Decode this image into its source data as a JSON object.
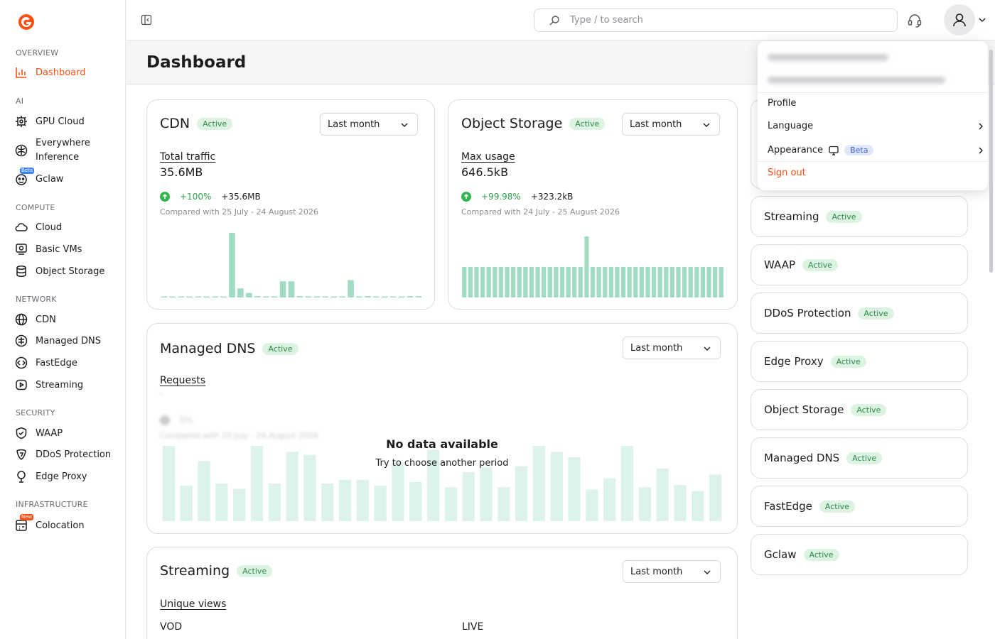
{
  "sidebar": {
    "sections": [
      {
        "label": "OVERVIEW",
        "items": [
          {
            "label": "Dashboard",
            "icon": "bar-chart-icon",
            "active": true
          }
        ]
      },
      {
        "label": "AI",
        "items": [
          {
            "label": "GPU Cloud",
            "icon": "gpu-icon"
          },
          {
            "label": "Everywhere Inference",
            "icon": "globe-brain-icon"
          },
          {
            "label": "Gclaw",
            "icon": "robot-icon",
            "badge": "Beta"
          }
        ]
      },
      {
        "label": "COMPUTE",
        "items": [
          {
            "label": "Cloud",
            "icon": "cloud-icon"
          },
          {
            "label": "Basic VMs",
            "icon": "vm-icon"
          },
          {
            "label": "Object Storage",
            "icon": "database-icon"
          }
        ]
      },
      {
        "label": "NETWORK",
        "items": [
          {
            "label": "CDN",
            "icon": "globe-icon"
          },
          {
            "label": "Managed DNS",
            "icon": "dns-icon"
          },
          {
            "label": "FastEdge",
            "icon": "code-icon"
          },
          {
            "label": "Streaming",
            "icon": "play-icon"
          }
        ]
      },
      {
        "label": "SECURITY",
        "items": [
          {
            "label": "WAAP",
            "icon": "shield-check-icon"
          },
          {
            "label": "DDoS Protection",
            "icon": "shield-icon"
          },
          {
            "label": "Edge Proxy",
            "icon": "location-icon"
          }
        ]
      },
      {
        "label": "INFRASTRUCTURE",
        "items": [
          {
            "label": "Colocation",
            "icon": "server-icon",
            "badge": "New"
          }
        ]
      }
    ]
  },
  "topbar": {
    "search_placeholder": "Type / to search"
  },
  "header": {
    "title": "Dashboard"
  },
  "cards": {
    "cdn": {
      "title": "CDN",
      "status": "Active",
      "period": "Last month",
      "metric_label": "Total traffic",
      "metric_value": "35.6MB",
      "delta_pct": "+100%",
      "delta_abs": "+35.6MB",
      "compare": "Compared with 25 July - 24 August 2026",
      "bars": [
        0,
        0,
        0,
        0,
        0,
        0,
        0,
        0,
        1,
        0.14,
        0.07,
        0.02,
        0,
        0,
        0.25,
        0.25,
        0.02,
        0,
        0,
        0,
        0,
        0,
        0.27,
        0,
        0.02,
        0,
        0,
        0,
        0,
        0.02,
        0.02
      ]
    },
    "object_storage": {
      "title": "Object Storage",
      "status": "Active",
      "period": "Last month",
      "metric_label": "Max usage",
      "metric_value": "646.5kB",
      "delta_pct": "+99.98%",
      "delta_abs": "+323.2kB",
      "compare": "Compared with 24 July - 25 August 2026",
      "bars": [
        0.5,
        0.5,
        0.5,
        0.5,
        0.5,
        0.5,
        0.5,
        0.5,
        0.5,
        0.5,
        0.5,
        0.5,
        0.5,
        0.5,
        0.5,
        0.5,
        0.5,
        0.5,
        0.5,
        0.5,
        1,
        0.5,
        0.5,
        0.5,
        0.5,
        0.5,
        0.5,
        0.5,
        0.5,
        0.5,
        0.5,
        0.5,
        0.5,
        0.5,
        0.5,
        0.5,
        0.5,
        0.5,
        0.5,
        0.5,
        0.5,
        0.5,
        0.5
      ]
    },
    "managed_dns": {
      "title": "Managed DNS",
      "status": "Active",
      "period": "Last month",
      "metric_label": "Requests",
      "metric_value": "-",
      "delta_pct": "0%",
      "compare": "Compared with 25 July - 24 August 2026",
      "nodata_title": "No data available",
      "nodata_sub": "Try to choose another period",
      "bars": [
        1,
        0.47,
        0.8,
        0.5,
        0.43,
        1,
        0.5,
        0.92,
        0.88,
        0.5,
        0.55,
        0.55,
        0.47,
        0.78,
        0.52,
        0.95,
        0.45,
        0.65,
        0.72,
        0.45,
        0.73,
        1,
        0.92,
        0.85,
        0.42,
        0.57,
        1,
        0.45,
        0.7,
        0.48,
        0.4,
        0.62
      ]
    },
    "streaming": {
      "title": "Streaming",
      "status": "Active",
      "period": "Last month",
      "metric_label": "Unique views",
      "col_vod": "VOD",
      "col_live": "LIVE"
    }
  },
  "service_list": [
    {
      "name": "Streaming",
      "status": "Active"
    },
    {
      "name": "WAAP",
      "status": "Active"
    },
    {
      "name": "DDoS Protection",
      "status": "Active"
    },
    {
      "name": "Edge Proxy",
      "status": "Active"
    },
    {
      "name": "Object Storage",
      "status": "Active"
    },
    {
      "name": "Managed DNS",
      "status": "Active"
    },
    {
      "name": "FastEdge",
      "status": "Active"
    },
    {
      "name": "Gclaw",
      "status": "Active"
    }
  ],
  "user_menu": {
    "items": {
      "profile": "Profile",
      "language": "Language",
      "appearance": "Appearance",
      "appearance_badge": "Beta",
      "signout": "Sign out"
    }
  },
  "colors": {
    "accent": "#ff4f12",
    "active_badge_bg": "#dcf3e2",
    "active_badge_text": "#2c8a4a",
    "bar": "#9fdcc2",
    "beta_badge": "#3b82f6",
    "new_badge": "#ff4f12"
  }
}
